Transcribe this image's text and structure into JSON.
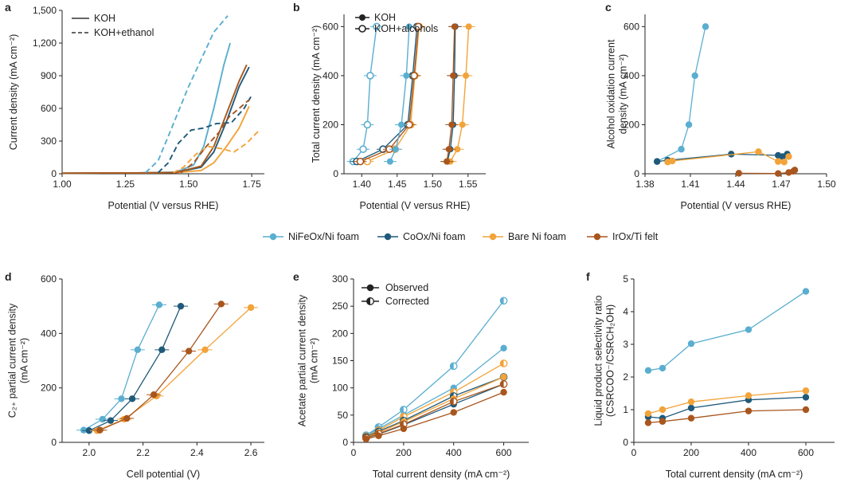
{
  "colors": {
    "nife": "#5aaed0",
    "coox": "#1f5a7a",
    "ni": "#f2a33a",
    "irox": "#a8561e",
    "axis": "#222222"
  },
  "legend": {
    "items": [
      {
        "key": "nife",
        "label": "NiFeOx/Ni foam"
      },
      {
        "key": "coox",
        "label": "CoOx/Ni foam"
      },
      {
        "key": "ni",
        "label": "Bare Ni foam"
      },
      {
        "key": "irox",
        "label": "IrOx/Ti felt"
      }
    ]
  },
  "chart_data": [
    {
      "id": "a",
      "panel_label": "a",
      "type": "line",
      "xlabel": "Potential (V versus RHE)",
      "ylabel": "Current density (mA cm⁻²)",
      "xlim": [
        1.0,
        1.8
      ],
      "ylim": [
        0,
        1500
      ],
      "xticks": [
        1.0,
        1.25,
        1.5,
        1.75
      ],
      "xtick_labels": [
        "1.00",
        "1.25",
        "1.50",
        "1.75"
      ],
      "yticks": [
        0,
        300,
        600,
        900,
        1200,
        1500
      ],
      "ytick_labels": [
        "0",
        "300",
        "600",
        "900",
        "1,200",
        "1,500"
      ],
      "legend": [
        {
          "style": "solid",
          "label": "KOH"
        },
        {
          "style": "dashed",
          "label": "KOH+ethanol"
        }
      ],
      "series": [
        {
          "key": "nife",
          "style": "solid",
          "points": [
            [
              1.0,
              5
            ],
            [
              1.3,
              8
            ],
            [
              1.45,
              15
            ],
            [
              1.52,
              80
            ],
            [
              1.56,
              250
            ],
            [
              1.6,
              600
            ],
            [
              1.64,
              1000
            ],
            [
              1.665,
              1200
            ]
          ]
        },
        {
          "key": "coox",
          "style": "solid",
          "points": [
            [
              1.0,
              5
            ],
            [
              1.3,
              8
            ],
            [
              1.45,
              12
            ],
            [
              1.55,
              60
            ],
            [
              1.6,
              200
            ],
            [
              1.65,
              480
            ],
            [
              1.7,
              800
            ],
            [
              1.74,
              980
            ]
          ]
        },
        {
          "key": "ni",
          "style": "solid",
          "points": [
            [
              1.0,
              5
            ],
            [
              1.3,
              8
            ],
            [
              1.45,
              10
            ],
            [
              1.55,
              30
            ],
            [
              1.6,
              100
            ],
            [
              1.65,
              250
            ],
            [
              1.7,
              420
            ],
            [
              1.74,
              620
            ]
          ]
        },
        {
          "key": "irox",
          "style": "solid",
          "points": [
            [
              1.0,
              5
            ],
            [
              1.3,
              8
            ],
            [
              1.45,
              12
            ],
            [
              1.55,
              70
            ],
            [
              1.6,
              250
            ],
            [
              1.65,
              550
            ],
            [
              1.7,
              850
            ],
            [
              1.73,
              1000
            ]
          ]
        },
        {
          "key": "nife",
          "style": "dashed",
          "points": [
            [
              1.33,
              10
            ],
            [
              1.38,
              120
            ],
            [
              1.43,
              400
            ],
            [
              1.5,
              800
            ],
            [
              1.56,
              1100
            ],
            [
              1.6,
              1300
            ],
            [
              1.655,
              1450
            ]
          ]
        },
        {
          "key": "coox",
          "style": "dashed",
          "points": [
            [
              1.38,
              10
            ],
            [
              1.42,
              100
            ],
            [
              1.46,
              280
            ],
            [
              1.51,
              400
            ],
            [
              1.56,
              420
            ],
            [
              1.61,
              460
            ],
            [
              1.67,
              470
            ],
            [
              1.72,
              600
            ],
            [
              1.75,
              720
            ]
          ]
        },
        {
          "key": "ni",
          "style": "dashed",
          "points": [
            [
              1.44,
              10
            ],
            [
              1.48,
              60
            ],
            [
              1.53,
              180
            ],
            [
              1.58,
              250
            ],
            [
              1.63,
              230
            ],
            [
              1.68,
              200
            ],
            [
              1.73,
              280
            ],
            [
              1.78,
              400
            ]
          ]
        },
        {
          "key": "irox",
          "style": "dashed",
          "points": [
            [
              1.47,
              10
            ],
            [
              1.52,
              100
            ],
            [
              1.57,
              250
            ],
            [
              1.62,
              380
            ],
            [
              1.66,
              520
            ],
            [
              1.7,
              600
            ],
            [
              1.74,
              680
            ]
          ]
        }
      ]
    },
    {
      "id": "b",
      "panel_label": "b",
      "type": "scatter",
      "xlabel": "Potential (V versus RHE)",
      "ylabel": "Total current density (mA cm⁻²)",
      "xlim": [
        1.375,
        1.575
      ],
      "ylim": [
        0,
        650
      ],
      "xticks": [
        1.4,
        1.45,
        1.5,
        1.55
      ],
      "xtick_labels": [
        "1.40",
        "1.45",
        "1.50",
        "1.55"
      ],
      "yticks": [
        0,
        200,
        400,
        600
      ],
      "ytick_labels": [
        "0",
        "200",
        "400",
        "600"
      ],
      "legend": [
        {
          "marker": "filled",
          "label": "KOH"
        },
        {
          "marker": "open",
          "label": "KOH+alcohols"
        }
      ],
      "series": [
        {
          "key": "nife",
          "marker": "open",
          "x": [
            1.388,
            1.402,
            1.408,
            1.412,
            1.421
          ],
          "y": [
            50,
            100,
            200,
            400,
            600
          ]
        },
        {
          "key": "coox",
          "marker": "open",
          "x": [
            1.393,
            1.43,
            1.465,
            1.472,
            1.478
          ],
          "y": [
            50,
            100,
            200,
            400,
            600
          ]
        },
        {
          "key": "ni",
          "marker": "open",
          "x": [
            1.408,
            1.447,
            1.469,
            1.475,
            1.481
          ],
          "y": [
            50,
            100,
            200,
            400,
            600
          ]
        },
        {
          "key": "irox",
          "marker": "open",
          "x": [
            1.398,
            1.439,
            1.467,
            1.474,
            1.48
          ],
          "y": [
            50,
            100,
            200,
            400,
            600
          ]
        },
        {
          "key": "nife",
          "marker": "filled",
          "x": [
            1.44,
            1.448,
            1.456,
            1.463,
            1.467
          ],
          "y": [
            50,
            100,
            200,
            400,
            600
          ]
        },
        {
          "key": "coox",
          "marker": "filled",
          "x": [
            1.521,
            1.525,
            1.529,
            1.531,
            1.532
          ],
          "y": [
            50,
            100,
            200,
            400,
            600
          ]
        },
        {
          "key": "ni",
          "marker": "filled",
          "x": [
            1.525,
            1.535,
            1.542,
            1.547,
            1.551
          ],
          "y": [
            50,
            100,
            200,
            400,
            600
          ]
        },
        {
          "key": "irox",
          "marker": "filled",
          "x": [
            1.52,
            1.523,
            1.527,
            1.529,
            1.531
          ],
          "y": [
            50,
            100,
            200,
            400,
            600
          ]
        }
      ]
    },
    {
      "id": "c",
      "panel_label": "c",
      "type": "line",
      "xlabel": "Potential (V versus RHE)",
      "ylabel": "Alcohol oxidation current density (mA cm⁻²)",
      "ylabel_lines": [
        "Alcohol oxidation current",
        "density (mA cm⁻²)"
      ],
      "xlim": [
        1.38,
        1.5
      ],
      "ylim": [
        0,
        650
      ],
      "xticks": [
        1.38,
        1.41,
        1.44,
        1.47,
        1.5
      ],
      "xtick_labels": [
        "1.38",
        "1.41",
        "1.44",
        "1.47",
        "1.50"
      ],
      "yticks": [
        0,
        200,
        400,
        600
      ],
      "ytick_labels": [
        "0",
        "200",
        "400",
        "600"
      ],
      "series": [
        {
          "key": "nife",
          "x": [
            1.388,
            1.404,
            1.409,
            1.413,
            1.42
          ],
          "y": [
            50,
            100,
            200,
            400,
            600
          ]
        },
        {
          "key": "coox",
          "x": [
            1.388,
            1.395,
            1.437,
            1.468,
            1.471,
            1.474
          ],
          "y": [
            50,
            55,
            80,
            75,
            70,
            80
          ]
        },
        {
          "key": "ni",
          "x": [
            1.395,
            1.398,
            1.455,
            1.468,
            1.472,
            1.475
          ],
          "y": [
            48,
            52,
            90,
            50,
            48,
            70
          ]
        },
        {
          "key": "irox",
          "x": [
            1.442,
            1.468,
            1.475,
            1.478,
            1.479
          ],
          "y": [
            2,
            1,
            5,
            10,
            15
          ]
        }
      ]
    },
    {
      "id": "d",
      "panel_label": "d",
      "type": "line",
      "xlabel": "Cell potential (V)",
      "ylabel": "C2+ partial current density (mA cm⁻²)",
      "ylabel_lines": [
        "C₂₊ partial current density",
        "(mA cm⁻²)"
      ],
      "xlim": [
        1.9,
        2.65
      ],
      "ylim": [
        0,
        600
      ],
      "xticks": [
        2.0,
        2.2,
        2.4,
        2.6
      ],
      "xtick_labels": [
        "2.0",
        "2.2",
        "2.4",
        "2.6"
      ],
      "yticks": [
        0,
        200,
        400,
        600
      ],
      "ytick_labels": [
        "0",
        "200",
        "400",
        "600"
      ],
      "series": [
        {
          "key": "nife",
          "x": [
            1.98,
            2.05,
            2.12,
            2.18,
            2.26
          ],
          "y": [
            45,
            85,
            160,
            340,
            505
          ]
        },
        {
          "key": "coox",
          "x": [
            2.0,
            2.08,
            2.16,
            2.27,
            2.34
          ],
          "y": [
            43,
            80,
            160,
            340,
            500
          ]
        },
        {
          "key": "ni",
          "x": [
            2.03,
            2.13,
            2.25,
            2.43,
            2.6
          ],
          "y": [
            43,
            85,
            170,
            340,
            495
          ]
        },
        {
          "key": "irox",
          "x": [
            2.04,
            2.14,
            2.24,
            2.37,
            2.49
          ],
          "y": [
            45,
            88,
            175,
            335,
            508
          ]
        }
      ]
    },
    {
      "id": "e",
      "panel_label": "e",
      "type": "line",
      "xlabel": "Total current density (mA cm⁻²)",
      "ylabel": "Acetate partial current density (mA cm⁻²)",
      "ylabel_lines": [
        "Acetate partial current density",
        "(mA cm⁻²)"
      ],
      "xlim": [
        0,
        700
      ],
      "ylim": [
        0,
        300
      ],
      "xticks": [
        0,
        200,
        400,
        600
      ],
      "xtick_labels": [
        "0",
        "200",
        "400",
        "600"
      ],
      "yticks": [
        0,
        50,
        100,
        150,
        200,
        250,
        300
      ],
      "ytick_labels": [
        "0",
        "50",
        "100",
        "150",
        "200",
        "250",
        "300"
      ],
      "legend": [
        {
          "marker": "filled",
          "label": "Observed"
        },
        {
          "marker": "half",
          "label": "Corrected"
        }
      ],
      "x": [
        50,
        100,
        200,
        400,
        600
      ],
      "series": [
        {
          "key": "nife",
          "marker": "half",
          "values": [
            13,
            28,
            60,
            140,
            260
          ]
        },
        {
          "key": "nife",
          "marker": "filled",
          "values": [
            12,
            25,
            50,
            100,
            173
          ]
        },
        {
          "key": "ni",
          "marker": "half",
          "values": [
            11,
            22,
            47,
            92,
            145
          ]
        },
        {
          "key": "coox",
          "marker": "half",
          "values": [
            10,
            20,
            40,
            85,
            120
          ]
        },
        {
          "key": "ni",
          "marker": "filled",
          "values": [
            9,
            18,
            38,
            80,
            120
          ]
        },
        {
          "key": "coox",
          "marker": "filled",
          "values": [
            8,
            15,
            32,
            70,
            107
          ]
        },
        {
          "key": "irox",
          "marker": "half",
          "values": [
            8,
            16,
            33,
            75,
            107
          ]
        },
        {
          "key": "irox",
          "marker": "filled",
          "values": [
            6,
            12,
            25,
            55,
            92
          ]
        }
      ]
    },
    {
      "id": "f",
      "panel_label": "f",
      "type": "line",
      "xlabel": "Total current density (mA cm⁻²)",
      "ylabel": "Liquid product selectivity ratio (CSRCOO-/CSRCH2OH)",
      "ylabel_lines": [
        "Liquid product selectivity ratio",
        "(CSRCOO⁻/CSRCH₂OH)"
      ],
      "xlim": [
        0,
        700
      ],
      "ylim": [
        0,
        5
      ],
      "xticks": [
        0,
        200,
        400,
        600
      ],
      "xtick_labels": [
        "0",
        "200",
        "400",
        "600"
      ],
      "yticks": [
        0,
        1,
        2,
        3,
        4,
        5
      ],
      "ytick_labels": [
        "0",
        "1",
        "2",
        "3",
        "4",
        "5"
      ],
      "x": [
        50,
        100,
        200,
        400,
        600
      ],
      "series": [
        {
          "key": "nife",
          "values": [
            2.2,
            2.27,
            3.02,
            3.45,
            4.62
          ]
        },
        {
          "key": "coox",
          "values": [
            0.78,
            0.74,
            1.05,
            1.3,
            1.38
          ]
        },
        {
          "key": "ni",
          "values": [
            0.88,
            1.0,
            1.24,
            1.43,
            1.58
          ]
        },
        {
          "key": "irox",
          "values": [
            0.6,
            0.64,
            0.74,
            0.96,
            1.0
          ]
        }
      ]
    }
  ]
}
